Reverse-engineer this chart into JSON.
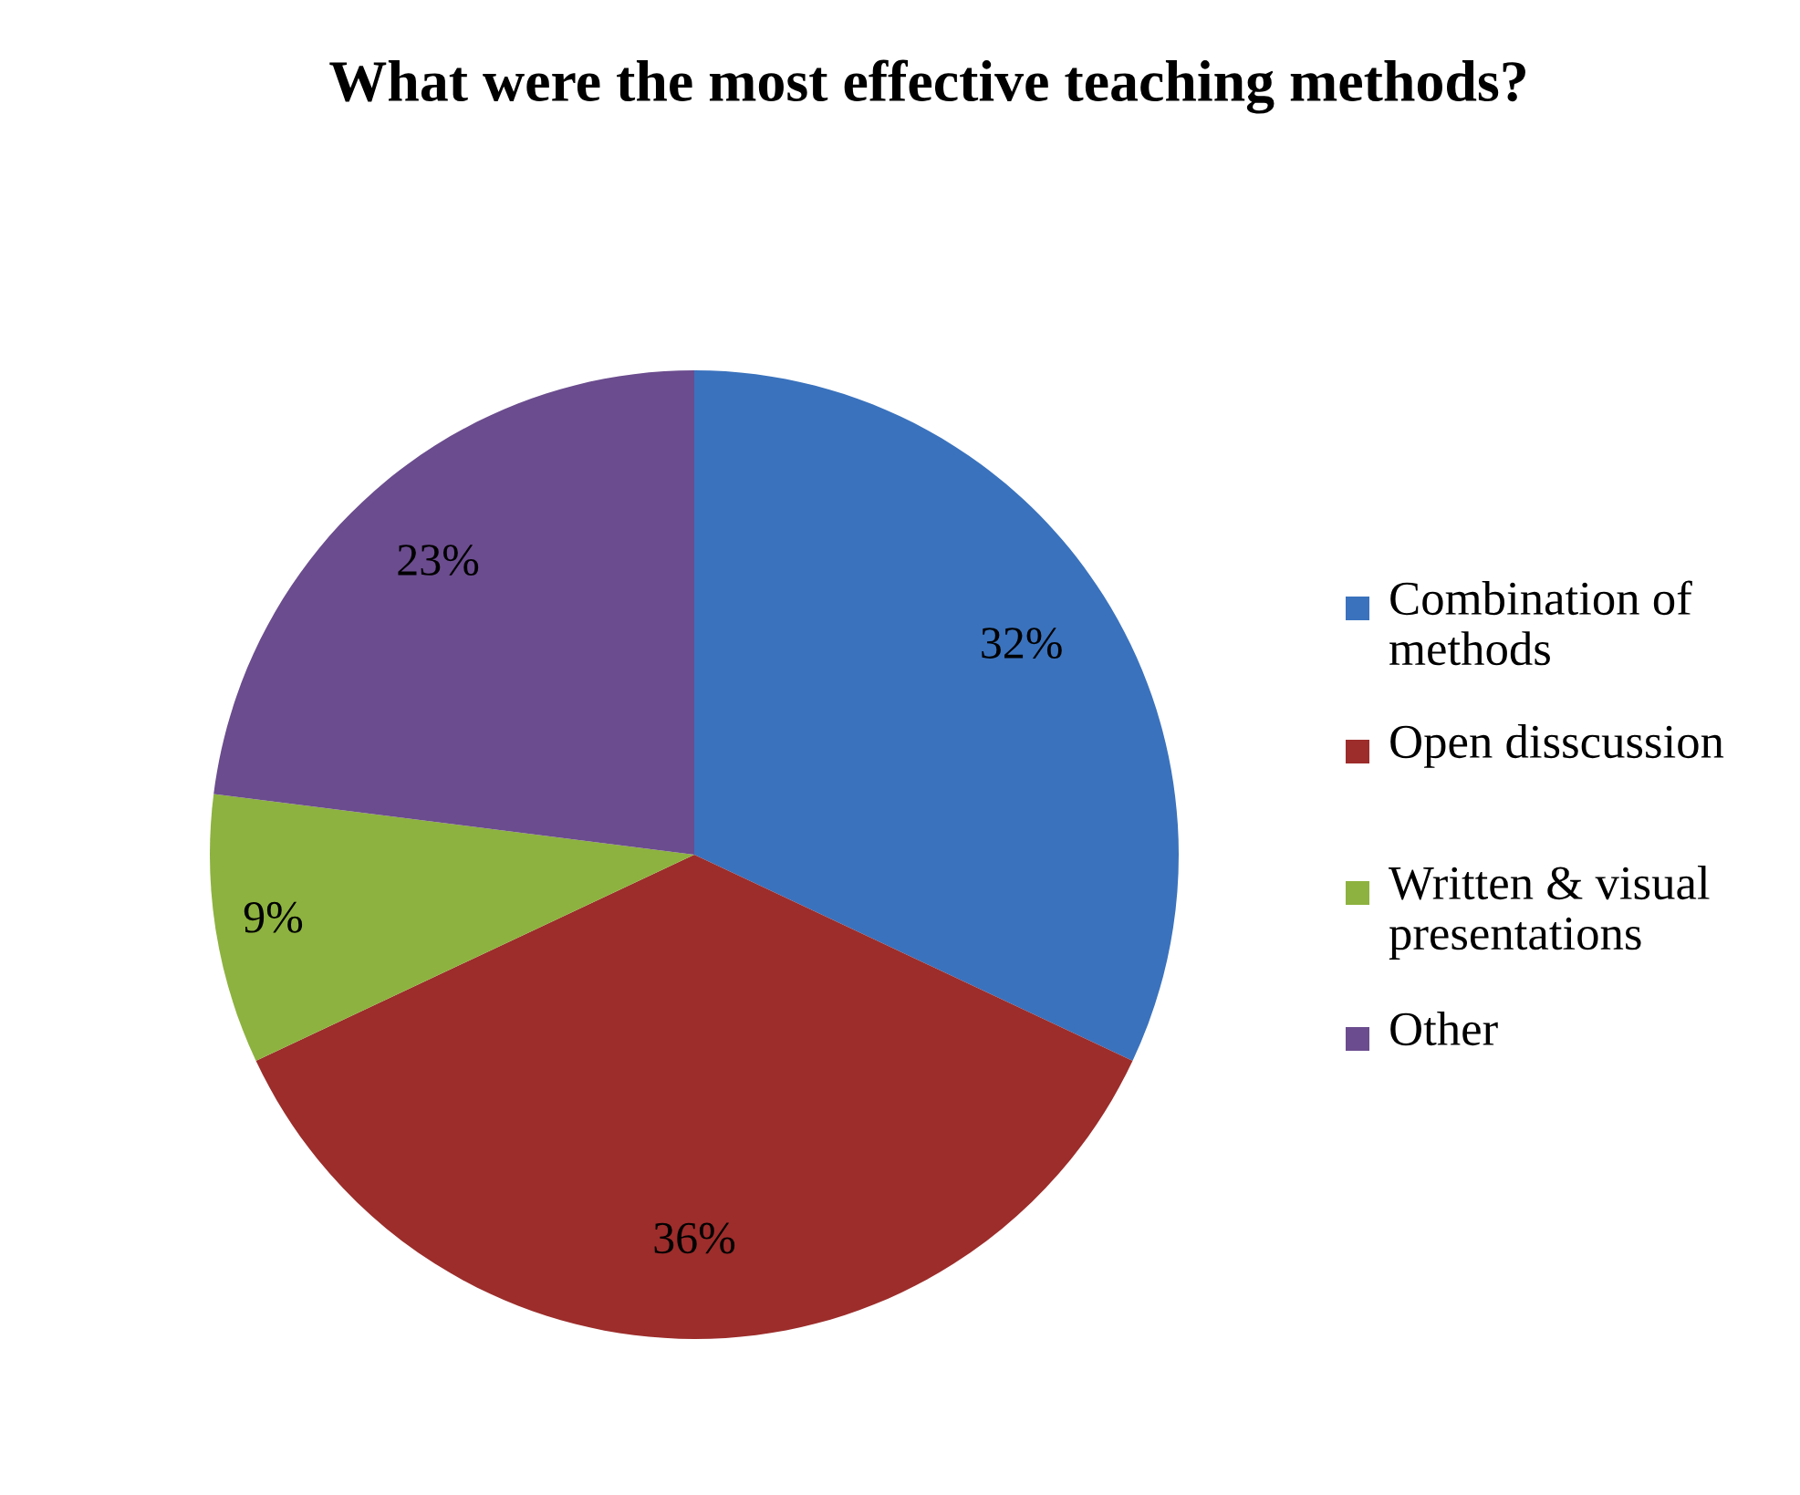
{
  "chart_data": {
    "type": "pie",
    "title": "What were the most effective teaching methods?",
    "categories": [
      "Combination of methods",
      "Open disscussion",
      "Written & visual presentations",
      "Other"
    ],
    "values": [
      32,
      36,
      9,
      23
    ],
    "colors": [
      "#3a72bd",
      "#9c2d2b",
      "#8db23f",
      "#6b4c8e"
    ],
    "value_labels": [
      "32%",
      "36%",
      "9%",
      "23%"
    ],
    "legend": "right"
  }
}
